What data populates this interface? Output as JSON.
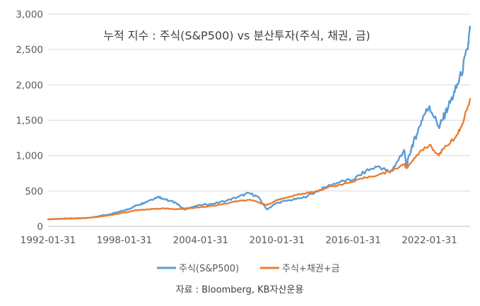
{
  "chart_data": {
    "type": "line",
    "title": "누적 지수 : 주식(S&P500) vs 분산투자(주식, 채권, 금)",
    "xlabel": "",
    "ylabel": "",
    "x_ticks": [
      "1992-01-31",
      "1998-01-31",
      "2004-01-31",
      "2010-01-31",
      "2016-01-31",
      "2022-01-31"
    ],
    "y_ticks": [
      "0",
      "500",
      "1,000",
      "1,500",
      "2,000",
      "2,500",
      "3,000"
    ],
    "ylim": [
      0,
      3000
    ],
    "xlim": [
      1992.0,
      2025.2
    ],
    "grid": "horizontal",
    "legend_position": "bottom",
    "series": [
      {
        "name": "주식(S&P500)",
        "color": "#5B9BD5",
        "points": [
          [
            1992.0,
            100
          ],
          [
            1993.0,
            108
          ],
          [
            1994.0,
            112
          ],
          [
            1995.0,
            115
          ],
          [
            1996.0,
            145
          ],
          [
            1997.0,
            175
          ],
          [
            1998.0,
            225
          ],
          [
            1998.5,
            255
          ],
          [
            1999.0,
            300
          ],
          [
            1999.5,
            330
          ],
          [
            2000.0,
            370
          ],
          [
            2000.7,
            420
          ],
          [
            2001.0,
            395
          ],
          [
            2001.5,
            360
          ],
          [
            2002.0,
            340
          ],
          [
            2002.75,
            235
          ],
          [
            2003.0,
            260
          ],
          [
            2004.0,
            300
          ],
          [
            2005.0,
            320
          ],
          [
            2006.0,
            360
          ],
          [
            2007.0,
            420
          ],
          [
            2007.8,
            470
          ],
          [
            2008.5,
            420
          ],
          [
            2009.2,
            240
          ],
          [
            2010.0,
            330
          ],
          [
            2011.0,
            370
          ],
          [
            2012.0,
            400
          ],
          [
            2013.0,
            480
          ],
          [
            2014.0,
            570
          ],
          [
            2015.0,
            630
          ],
          [
            2016.0,
            660
          ],
          [
            2017.0,
            780
          ],
          [
            2018.0,
            850
          ],
          [
            2018.9,
            760
          ],
          [
            2019.5,
            920
          ],
          [
            2020.0,
            1080
          ],
          [
            2020.2,
            850
          ],
          [
            2020.6,
            1120
          ],
          [
            2021.0,
            1300
          ],
          [
            2021.5,
            1550
          ],
          [
            2022.0,
            1700
          ],
          [
            2022.75,
            1400
          ],
          [
            2023.0,
            1500
          ],
          [
            2023.5,
            1700
          ],
          [
            2024.0,
            1900
          ],
          [
            2024.5,
            2150
          ],
          [
            2025.0,
            2500
          ],
          [
            2025.2,
            2800
          ]
        ]
      },
      {
        "name": "주식+채권+금",
        "color": "#ED7D31",
        "points": [
          [
            1992.0,
            100
          ],
          [
            1993.0,
            107
          ],
          [
            1994.0,
            110
          ],
          [
            1995.0,
            118
          ],
          [
            1996.0,
            135
          ],
          [
            1997.0,
            160
          ],
          [
            1998.0,
            195
          ],
          [
            1999.0,
            230
          ],
          [
            2000.0,
            240
          ],
          [
            2001.0,
            255
          ],
          [
            2002.0,
            240
          ],
          [
            2003.0,
            250
          ],
          [
            2004.0,
            270
          ],
          [
            2005.0,
            290
          ],
          [
            2006.0,
            320
          ],
          [
            2007.0,
            360
          ],
          [
            2008.0,
            370
          ],
          [
            2009.2,
            300
          ],
          [
            2010.0,
            370
          ],
          [
            2011.0,
            420
          ],
          [
            2012.0,
            460
          ],
          [
            2013.0,
            490
          ],
          [
            2014.0,
            550
          ],
          [
            2015.0,
            590
          ],
          [
            2016.0,
            630
          ],
          [
            2017.0,
            690
          ],
          [
            2018.0,
            730
          ],
          [
            2019.0,
            780
          ],
          [
            2020.0,
            880
          ],
          [
            2020.2,
            820
          ],
          [
            2021.0,
            1010
          ],
          [
            2022.0,
            1150
          ],
          [
            2022.75,
            1000
          ],
          [
            2023.0,
            1080
          ],
          [
            2024.0,
            1250
          ],
          [
            2024.5,
            1400
          ],
          [
            2025.2,
            1800
          ]
        ]
      }
    ],
    "source": "자료 : Bloomberg, KB자산운용"
  }
}
